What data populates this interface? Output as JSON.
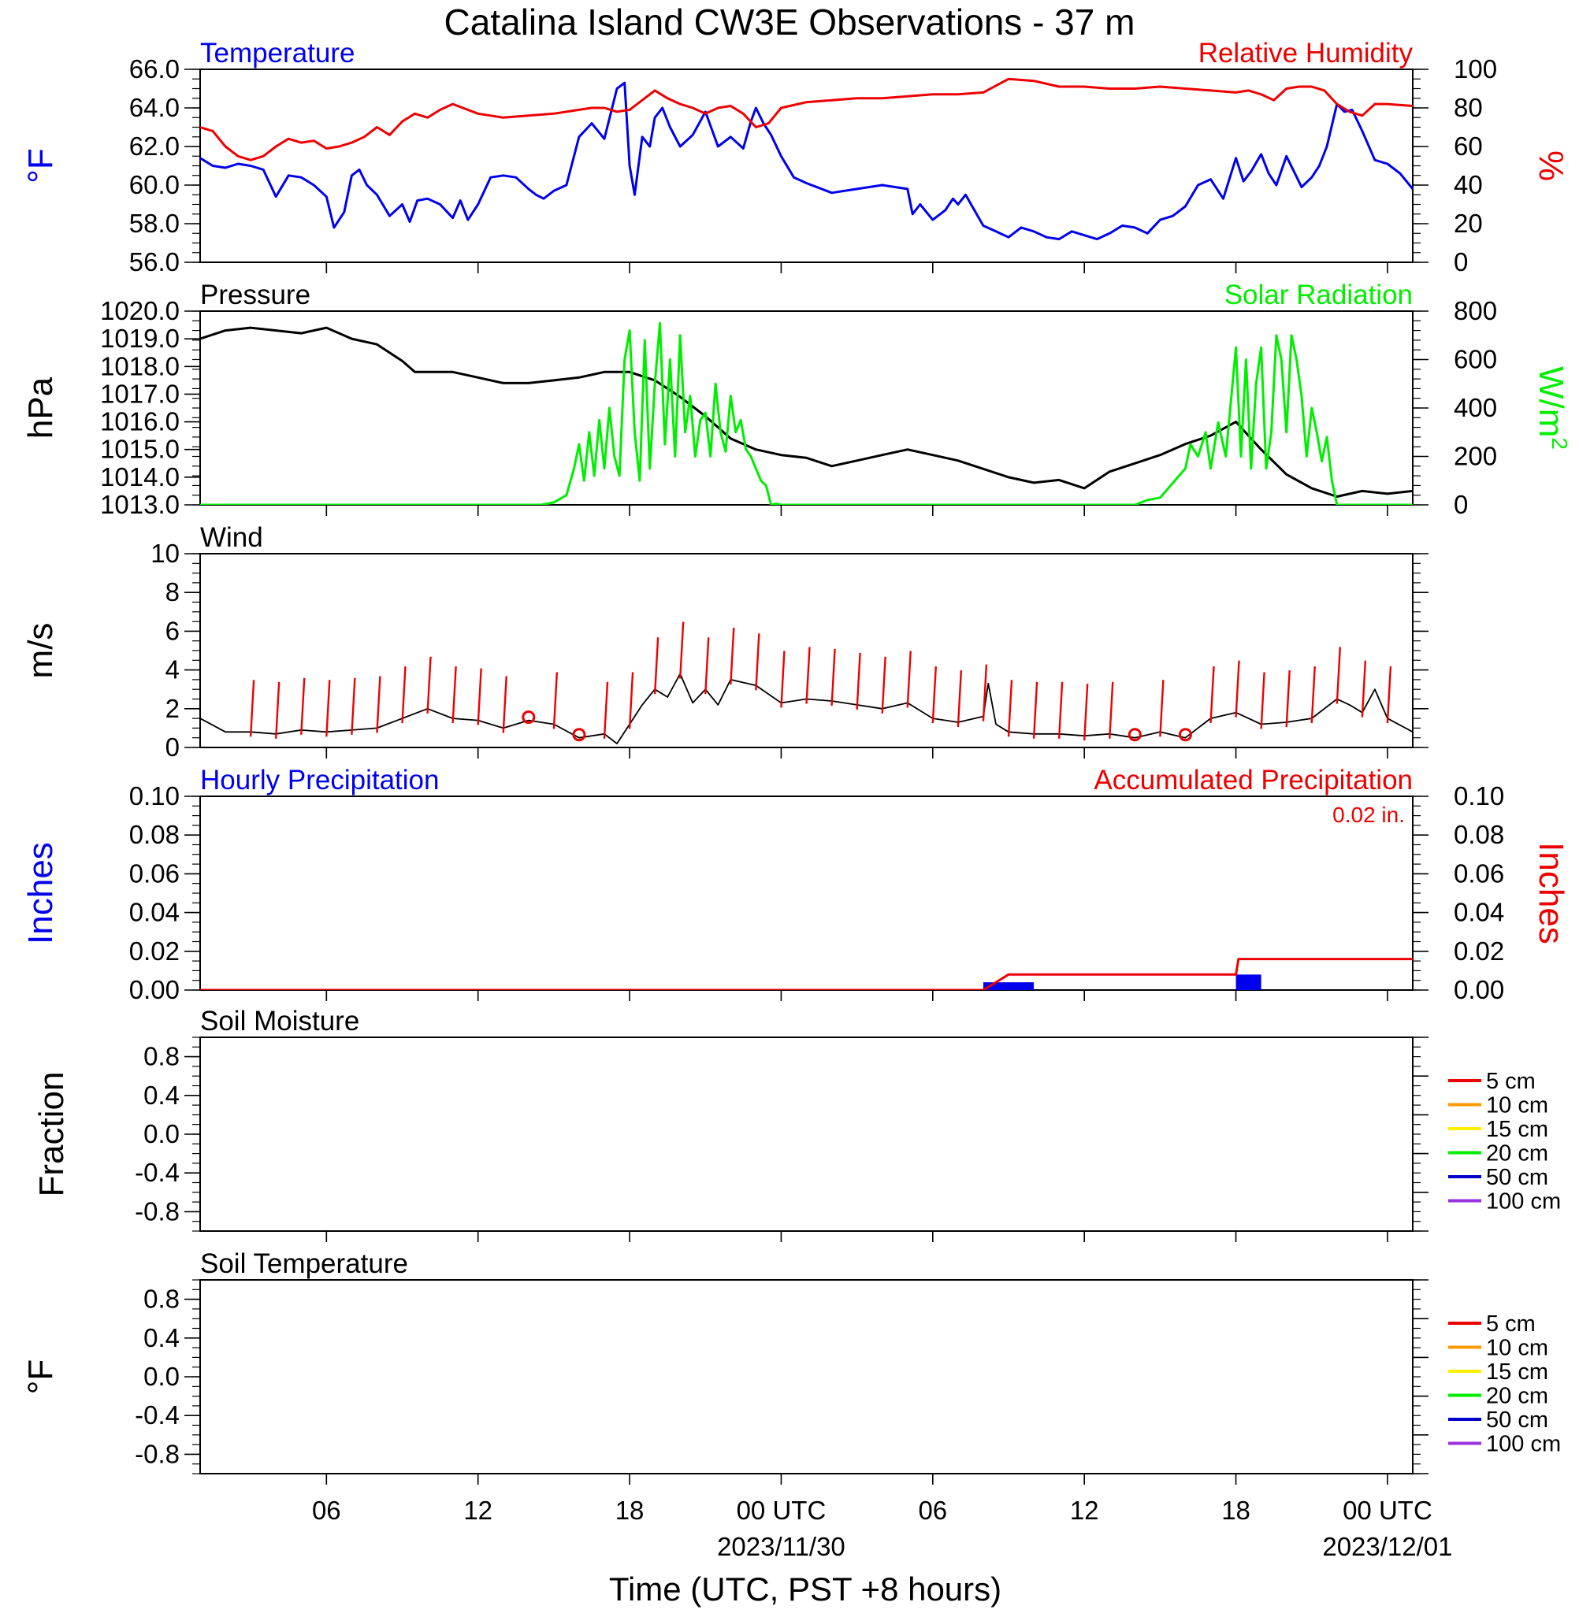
{
  "title": "Catalina Island CW3E Observations - 37 m",
  "xlabel": "Time (UTC, PST +8 hours)",
  "colors": {
    "temperature": "#0000ee",
    "humidity": "#ee0000",
    "pressure": "#000000",
    "solar": "#00ee00",
    "wind": "#000000",
    "barb": "#ee0000",
    "hourly_precip": "#0000ee",
    "accum_precip": "#ee0000",
    "soil_5cm": "#ee0000",
    "soil_10cm": "#ff9900",
    "soil_15cm": "#ffee00",
    "soil_20cm": "#00ee00",
    "soil_50cm": "#0000cc",
    "soil_100cm": "#9933dd"
  },
  "x_axis": {
    "start_hour": 0,
    "end_hour": 48,
    "tick_labels": [
      {
        "hour": 5,
        "label": "06"
      },
      {
        "hour": 11,
        "label": "12"
      },
      {
        "hour": 17,
        "label": "18"
      },
      {
        "hour": 23,
        "label": "00 UTC",
        "sub": "2023/11/30"
      },
      {
        "hour": 29,
        "label": "06"
      },
      {
        "hour": 35,
        "label": "12"
      },
      {
        "hour": 41,
        "label": "18"
      },
      {
        "hour": 47,
        "label": "00 UTC",
        "sub": "2023/12/01"
      }
    ]
  },
  "chart_data": [
    {
      "type": "line",
      "panel": "temperature_humidity",
      "left_title": "Temperature",
      "right_title": "Relative Humidity",
      "left_ylabel": "°F",
      "right_ylabel": "%",
      "left_ylim": [
        56,
        66
      ],
      "right_ylim": [
        0,
        100
      ],
      "left_ticks": [
        "56.0",
        "58.0",
        "60.0",
        "62.0",
        "64.0",
        "66.0"
      ],
      "right_ticks": [
        "0",
        "20",
        "40",
        "60",
        "80",
        "100"
      ],
      "series": [
        {
          "name": "Temperature",
          "axis": "left",
          "x": [
            0,
            0.5,
            1,
            1.5,
            2,
            2.5,
            3,
            3.5,
            4,
            4.5,
            5,
            5.3,
            5.7,
            6,
            6.3,
            6.6,
            7,
            7.5,
            8,
            8.3,
            8.6,
            9,
            9.5,
            10,
            10.3,
            10.6,
            11,
            11.5,
            12,
            12.5,
            13,
            13.3,
            13.6,
            14,
            14.5,
            15,
            15.5,
            16,
            16.5,
            16.8,
            17,
            17.2,
            17.5,
            17.8,
            18,
            18.3,
            18.6,
            19,
            19.5,
            20,
            20.5,
            21,
            21.5,
            21.8,
            22,
            22.3,
            22.6,
            23,
            23.5,
            24,
            25,
            26,
            27,
            28,
            28.2,
            28.5,
            29,
            29.5,
            29.8,
            30,
            30.3,
            31,
            31.5,
            32,
            32.5,
            33,
            33.5,
            34,
            34.5,
            35,
            35.5,
            36,
            36.5,
            37,
            37.5,
            38,
            38.5,
            39,
            39.5,
            40,
            40.5,
            41,
            41.3,
            41.6,
            42,
            42.3,
            42.6,
            43,
            43.3,
            43.6,
            44,
            44.3,
            44.6,
            45,
            45.3,
            45.6,
            46,
            46.5,
            47,
            47.5,
            48
          ],
          "y": [
            61.4,
            61.0,
            60.9,
            61.1,
            61.0,
            60.8,
            59.4,
            60.5,
            60.4,
            60.0,
            59.4,
            57.8,
            58.6,
            60.5,
            60.8,
            60.0,
            59.5,
            58.4,
            59.0,
            58.1,
            59.2,
            59.3,
            59.0,
            58.3,
            59.2,
            58.2,
            59.0,
            60.4,
            60.5,
            60.4,
            59.8,
            59.5,
            59.3,
            59.7,
            60.0,
            62.5,
            63.2,
            62.4,
            65.0,
            65.3,
            61.0,
            59.5,
            62.5,
            62.0,
            63.5,
            64.0,
            63.0,
            62.0,
            62.6,
            63.8,
            62.0,
            62.5,
            61.9,
            63.3,
            64.0,
            63.2,
            62.6,
            61.5,
            60.4,
            60.1,
            59.6,
            59.8,
            60.0,
            59.8,
            58.5,
            59.0,
            58.2,
            58.7,
            59.3,
            59.0,
            59.5,
            57.9,
            57.6,
            57.3,
            57.8,
            57.6,
            57.3,
            57.2,
            57.6,
            57.4,
            57.2,
            57.5,
            57.9,
            57.8,
            57.5,
            58.2,
            58.4,
            58.9,
            60.0,
            60.3,
            59.3,
            61.4,
            60.2,
            60.7,
            61.6,
            60.6,
            60.0,
            61.5,
            60.7,
            59.9,
            60.4,
            61.0,
            62.0,
            64.2,
            63.8,
            63.9,
            62.8,
            61.3,
            61.1,
            60.6,
            59.8
          ]
        },
        {
          "name": "Relative Humidity",
          "axis": "right",
          "x": [
            0,
            0.5,
            1,
            1.5,
            2,
            2.5,
            3,
            3.5,
            4,
            4.5,
            5,
            5.5,
            6,
            6.5,
            7,
            7.5,
            8,
            8.5,
            9,
            9.5,
            10,
            11,
            12,
            13,
            14,
            15,
            15.5,
            16,
            16.5,
            17,
            17.5,
            18,
            18.5,
            19,
            19.5,
            20,
            20.5,
            21,
            21.5,
            22,
            22.5,
            23,
            24,
            25,
            26,
            27,
            28,
            29,
            30,
            31,
            32,
            33,
            34,
            35,
            36,
            37,
            38,
            39,
            40,
            41,
            41.5,
            42,
            42.5,
            43,
            43.5,
            44,
            44.5,
            45,
            45.5,
            46,
            46.5,
            47,
            48
          ],
          "y": [
            70,
            68,
            60,
            55,
            53,
            55,
            60,
            64,
            62,
            63,
            59,
            60,
            62,
            65,
            70,
            66,
            73,
            77,
            75,
            79,
            82,
            77,
            75,
            76,
            77,
            79,
            80,
            80,
            78,
            79,
            84,
            89,
            85,
            82,
            80,
            77,
            80,
            81,
            77,
            70,
            72,
            80,
            83,
            84,
            85,
            85,
            86,
            87,
            87,
            88,
            95,
            94,
            91,
            91,
            90,
            90,
            91,
            90,
            89,
            88,
            89,
            87,
            84,
            90,
            91,
            91,
            89,
            82,
            78,
            76,
            82,
            82,
            81
          ]
        }
      ]
    },
    {
      "type": "line",
      "panel": "pressure_solar",
      "left_title": "Pressure",
      "right_title": "Solar Radiation",
      "left_ylabel": "hPa",
      "right_ylabel": "W/m",
      "right_ylabel_sup": "2",
      "left_ylim": [
        1013,
        1020
      ],
      "right_ylim": [
        0,
        800
      ],
      "left_ticks": [
        "1013.0",
        "1014.0",
        "1015.0",
        "1016.0",
        "1017.0",
        "1018.0",
        "1019.0",
        "1020.0"
      ],
      "right_ticks": [
        "0",
        "200",
        "400",
        "600",
        "800"
      ],
      "series": [
        {
          "name": "Pressure",
          "axis": "left",
          "x": [
            0,
            1,
            2,
            3,
            4,
            5,
            6,
            7,
            8,
            8.5,
            9,
            10,
            11,
            12,
            13,
            14,
            15,
            16,
            17,
            18,
            19,
            20,
            21,
            22,
            23,
            24,
            25,
            26,
            27,
            28,
            29,
            30,
            31,
            32,
            33,
            34,
            35,
            36,
            37,
            38,
            39,
            40,
            41,
            42,
            43,
            44,
            45,
            46,
            47,
            48
          ],
          "y": [
            1019.0,
            1019.3,
            1019.4,
            1019.3,
            1019.2,
            1019.4,
            1019.0,
            1018.8,
            1018.2,
            1017.8,
            1017.8,
            1017.8,
            1017.6,
            1017.4,
            1017.4,
            1017.5,
            1017.6,
            1017.8,
            1017.8,
            1017.5,
            1016.9,
            1016.2,
            1015.4,
            1015.0,
            1014.8,
            1014.7,
            1014.4,
            1014.6,
            1014.8,
            1015.0,
            1014.8,
            1014.6,
            1014.3,
            1014.0,
            1013.8,
            1013.9,
            1013.6,
            1014.2,
            1014.5,
            1014.8,
            1015.2,
            1015.5,
            1016.0,
            1015.0,
            1014.1,
            1013.6,
            1013.3,
            1013.5,
            1013.4,
            1013.5
          ]
        },
        {
          "name": "Solar Radiation",
          "axis": "right",
          "x": [
            0,
            13.5,
            14,
            14.5,
            14.8,
            15,
            15.2,
            15.4,
            15.6,
            15.8,
            16,
            16.2,
            16.4,
            16.6,
            16.8,
            17,
            17.2,
            17.4,
            17.6,
            17.8,
            18,
            18.2,
            18.4,
            18.6,
            18.8,
            19,
            19.2,
            19.4,
            19.6,
            19.8,
            20,
            20.2,
            20.4,
            20.6,
            20.8,
            21,
            21.2,
            21.4,
            21.6,
            21.8,
            22,
            22.2,
            22.4,
            22.6,
            22.8,
            23,
            23.2,
            23.6,
            24,
            37,
            37.5,
            38,
            38.5,
            39,
            39.2,
            39.5,
            39.8,
            40,
            40.3,
            40.6,
            41,
            41.2,
            41.4,
            41.6,
            41.8,
            42,
            42.2,
            42.4,
            42.6,
            42.8,
            43,
            43.2,
            43.4,
            43.6,
            43.8,
            44,
            44.2,
            44.4,
            44.6,
            44.8,
            45,
            45.2,
            45.4,
            45.6,
            45.8,
            46,
            46.2,
            46.4,
            46.6,
            46.8,
            47,
            47.3,
            47.6,
            48
          ],
          "y": [
            0,
            0,
            10,
            40,
            150,
            250,
            100,
            300,
            120,
            350,
            150,
            400,
            200,
            120,
            600,
            720,
            300,
            100,
            680,
            150,
            500,
            750,
            250,
            600,
            200,
            700,
            300,
            450,
            200,
            350,
            380,
            200,
            500,
            300,
            220,
            450,
            300,
            350,
            230,
            200,
            150,
            100,
            80,
            0,
            5,
            0,
            0,
            0,
            0,
            0,
            20,
            30,
            90,
            150,
            250,
            200,
            300,
            150,
            340,
            200,
            650,
            200,
            600,
            150,
            500,
            650,
            150,
            300,
            700,
            600,
            300,
            700,
            600,
            450,
            200,
            400,
            300,
            180,
            280,
            100,
            0,
            0,
            0,
            0,
            0,
            0,
            0,
            0,
            0,
            0,
            0,
            0,
            0,
            0
          ]
        }
      ]
    },
    {
      "type": "line",
      "panel": "wind",
      "left_title": "Wind",
      "left_ylabel": "m/s",
      "left_ylim": [
        0,
        10
      ],
      "left_ticks": [
        "0",
        "2",
        "4",
        "6",
        "8",
        "10"
      ],
      "series": [
        {
          "name": "Wind",
          "axis": "left",
          "x": [
            0,
            1,
            2,
            3,
            4,
            5,
            6,
            7,
            8,
            9,
            10,
            11,
            12,
            13,
            14,
            15,
            16,
            16.5,
            17,
            17.5,
            18,
            18.5,
            19,
            19.5,
            20,
            20.5,
            21,
            22,
            23,
            24,
            25,
            26,
            27,
            28,
            29,
            30,
            31,
            31.2,
            31.5,
            32,
            33,
            34,
            35,
            36,
            37,
            38,
            39,
            40,
            41,
            42,
            43,
            44,
            45,
            45.5,
            46,
            46.5,
            47,
            48
          ],
          "y": [
            1.5,
            0.8,
            0.8,
            0.7,
            0.9,
            0.8,
            0.9,
            1.0,
            1.5,
            2.0,
            1.5,
            1.4,
            1.0,
            1.4,
            1.2,
            0.5,
            0.7,
            0.2,
            1.2,
            2.2,
            3.0,
            2.6,
            3.8,
            2.3,
            3.0,
            2.2,
            3.5,
            3.2,
            2.3,
            2.5,
            2.4,
            2.2,
            2.0,
            2.3,
            1.5,
            1.3,
            1.6,
            3.3,
            1.2,
            0.8,
            0.7,
            0.7,
            0.6,
            0.7,
            0.5,
            0.8,
            0.5,
            1.5,
            1.8,
            1.2,
            1.3,
            1.5,
            2.5,
            2.2,
            1.8,
            3.0,
            1.5,
            0.8
          ]
        }
      ],
      "barb_hours": [
        2,
        3,
        4,
        5,
        6,
        7,
        8,
        9,
        10,
        11,
        12,
        13,
        14,
        15,
        16,
        17,
        18,
        19,
        20,
        21,
        22,
        23,
        24,
        25,
        26,
        27,
        28,
        29,
        30,
        31,
        32,
        33,
        34,
        35,
        36,
        37,
        38,
        39,
        40,
        41,
        42,
        43,
        44,
        45,
        46,
        47
      ],
      "calm_hours": [
        13,
        15,
        37,
        39
      ]
    },
    {
      "type": "bar",
      "panel": "precipitation",
      "left_title": "Hourly Precipitation",
      "right_title": "Accumulated Precipitation",
      "total_label": "0.02 in.",
      "left_ylabel": "Inches",
      "right_ylabel": "Inches",
      "left_ylim": [
        0,
        0.1
      ],
      "right_ylim": [
        0,
        0.1
      ],
      "left_ticks": [
        "0.00",
        "0.02",
        "0.04",
        "0.06",
        "0.08",
        "0.10"
      ],
      "right_ticks": [
        "0.00",
        "0.02",
        "0.04",
        "0.06",
        "0.08",
        "0.10"
      ],
      "series": [
        {
          "name": "Hourly Precipitation",
          "axis": "left",
          "type": "bar",
          "x": [
            31,
            32,
            41
          ],
          "values": [
            0.004,
            0.004,
            0.008
          ]
        },
        {
          "name": "Accumulated Precipitation",
          "axis": "right",
          "type": "step",
          "x": [
            0,
            31,
            32,
            41,
            41.1,
            48
          ],
          "y": [
            0,
            0,
            0.008,
            0.008,
            0.016,
            0.016
          ]
        }
      ]
    },
    {
      "type": "line",
      "panel": "soil_moisture",
      "left_title": "Soil Moisture",
      "left_ylabel": "Fraction",
      "left_ylim": [
        -1,
        1
      ],
      "left_ticks": [
        "-0.8",
        "-0.4",
        "0.0",
        "0.4",
        "0.8"
      ],
      "series": [],
      "legend": [
        "5 cm",
        "10 cm",
        "15 cm",
        "20 cm",
        "50 cm",
        "100 cm"
      ]
    },
    {
      "type": "line",
      "panel": "soil_temperature",
      "left_title": "Soil Temperature",
      "left_ylabel": "°F",
      "left_ylim": [
        -1,
        1
      ],
      "left_ticks": [
        "-0.8",
        "-0.4",
        "0.0",
        "0.4",
        "0.8"
      ],
      "series": [],
      "legend": [
        "5 cm",
        "10 cm",
        "15 cm",
        "20 cm",
        "50 cm",
        "100 cm"
      ]
    }
  ]
}
